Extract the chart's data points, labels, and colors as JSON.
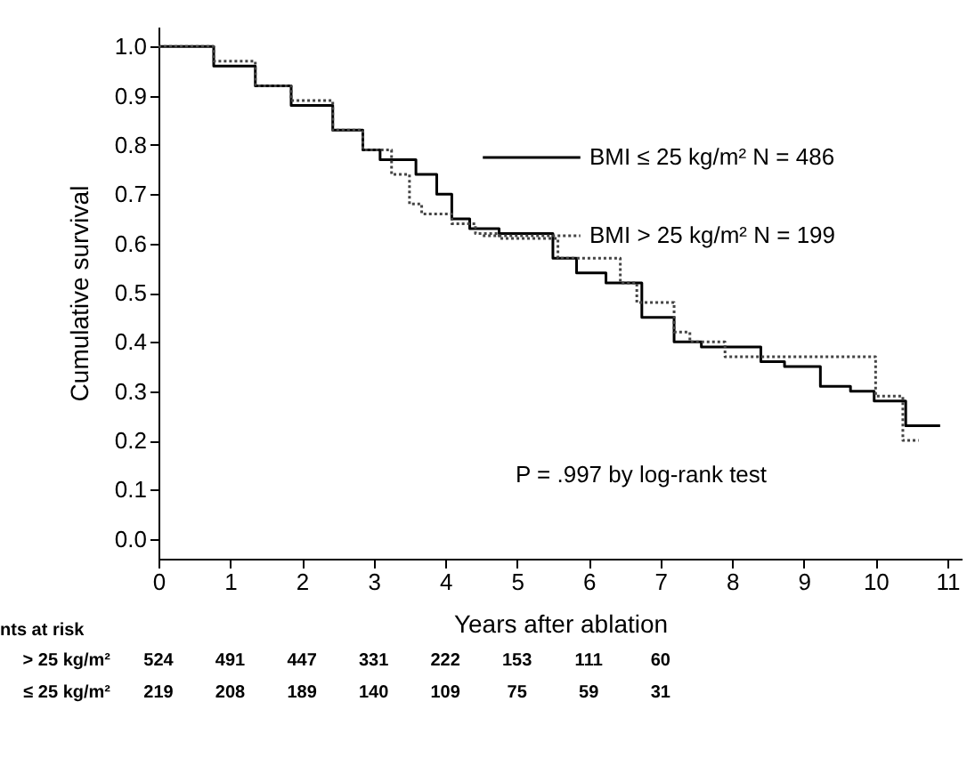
{
  "chart_data": {
    "type": "step",
    "xlabel": "Years after ablation",
    "ylabel": "Cumulative survival",
    "xlim": [
      0,
      11.2
    ],
    "ylim": [
      -0.04,
      1.04
    ],
    "xticks": [
      0,
      1,
      2,
      3,
      4,
      5,
      6,
      7,
      8,
      9,
      10,
      11
    ],
    "yticks": [
      {
        "value": 0,
        "label": "0.0"
      },
      0.1,
      0.2,
      0.3,
      0.4,
      0.5,
      0.6,
      0.7,
      0.8,
      0.9,
      {
        "value": 1,
        "label": "1.0"
      }
    ],
    "legend": "top right",
    "series": [
      {
        "name": "BMI ≤ 25 kg/m²   N = 486",
        "color": "#000000",
        "line_style": "solid",
        "x": [
          0,
          0.2,
          0.77,
          1.35,
          1.85,
          2.43,
          2.85,
          3.09,
          3.59,
          3.88,
          4.09,
          4.34,
          4.75,
          5.5,
          5.83,
          6.24,
          6.74,
          7.19,
          7.57,
          8.4,
          8.73,
          9.23,
          9.65,
          9.98,
          10.42,
          10.9
        ],
        "values": [
          1.0,
          1.0,
          0.96,
          0.92,
          0.88,
          0.83,
          0.79,
          0.77,
          0.74,
          0.7,
          0.65,
          0.63,
          0.62,
          0.57,
          0.54,
          0.52,
          0.45,
          0.4,
          0.39,
          0.36,
          0.35,
          0.31,
          0.3,
          0.28,
          0.23,
          0.23
        ]
      },
      {
        "name": "BMI > 25 kg/m²   N = 199",
        "color": "#444444",
        "line_style": "dotted",
        "x": [
          0,
          0.2,
          0.77,
          1.35,
          1.85,
          2.43,
          2.85,
          3.25,
          3.5,
          3.67,
          4.09,
          4.42,
          4.75,
          5.57,
          6.44,
          6.67,
          7.19,
          7.41,
          7.9,
          8.16,
          10.0,
          10.38,
          10.6
        ],
        "values": [
          1.0,
          1.0,
          0.97,
          0.92,
          0.89,
          0.83,
          0.79,
          0.74,
          0.68,
          0.66,
          0.64,
          0.62,
          0.61,
          0.57,
          0.52,
          0.48,
          0.42,
          0.4,
          0.37,
          0.37,
          0.29,
          0.2,
          0.2
        ]
      }
    ],
    "annotations": [
      "P = .997 by log-rank test",
      "nts at risk",
      "> 25 kg/m²",
      "524",
      "491",
      "447",
      "331",
      "222",
      "153",
      "111",
      "60",
      "≤ 25 kg/m²",
      "219",
      "208",
      "189",
      "140",
      "109",
      "75",
      "59",
      "31"
    ]
  }
}
